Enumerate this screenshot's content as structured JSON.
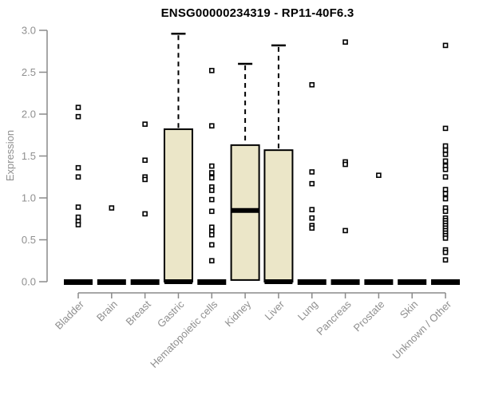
{
  "chart_data": {
    "type": "boxplot",
    "title": "ENSG00000234319 - RP11-40F6.3",
    "ylabel": "Expression",
    "ylim": [
      0.0,
      3.0
    ],
    "ytick_step": 0.5,
    "yticks": [
      0.0,
      0.5,
      1.0,
      1.5,
      2.0,
      2.5,
      3.0
    ],
    "grid": false,
    "legend": false,
    "categories": [
      "Bladder",
      "Brain",
      "Breast",
      "Gastric",
      "Hematopoietic cells",
      "Kidney",
      "Liver",
      "Lung",
      "Pancreas",
      "Prostate",
      "Skin",
      "Unknown / Other"
    ],
    "groups": [
      {
        "name": "Bladder",
        "box": {
          "low": 0,
          "q1": 0,
          "median": 0,
          "q3": 0,
          "high": 0
        },
        "points": [
          2.08,
          1.97,
          1.36,
          1.25,
          0.89,
          0.77,
          0.72,
          0.68
        ]
      },
      {
        "name": "Brain",
        "box": {
          "low": 0,
          "q1": 0,
          "median": 0,
          "q3": 0,
          "high": 0
        },
        "points": [
          0.88
        ]
      },
      {
        "name": "Breast",
        "box": {
          "low": 0,
          "q1": 0,
          "median": 0,
          "q3": 0,
          "high": 0
        },
        "points": [
          1.88,
          1.45,
          1.25,
          1.22,
          0.81
        ]
      },
      {
        "name": "Gastric",
        "box": {
          "low": 0,
          "q1": 0,
          "median": 0,
          "q3": 1.82,
          "high": 2.96
        },
        "points": []
      },
      {
        "name": "Hematopoietic cells",
        "box": {
          "low": 0,
          "q1": 0,
          "median": 0,
          "q3": 0,
          "high": 0
        },
        "points": [
          2.52,
          1.86,
          1.38,
          1.3,
          1.24,
          1.13,
          1.09,
          0.98,
          0.84,
          0.65,
          0.6,
          0.56,
          0.44,
          0.25
        ]
      },
      {
        "name": "Kidney",
        "box": {
          "low": 0.02,
          "q1": 0.02,
          "median": 0.85,
          "q3": 1.63,
          "high": 2.6
        },
        "points": []
      },
      {
        "name": "Liver",
        "box": {
          "low": 0,
          "q1": 0,
          "median": 0,
          "q3": 1.57,
          "high": 2.82
        },
        "points": []
      },
      {
        "name": "Lung",
        "box": {
          "low": 0,
          "q1": 0,
          "median": 0,
          "q3": 0,
          "high": 0
        },
        "points": [
          2.35,
          1.31,
          1.17,
          0.86,
          0.76,
          0.67,
          0.64
        ]
      },
      {
        "name": "Pancreas",
        "box": {
          "low": 0,
          "q1": 0,
          "median": 0,
          "q3": 0,
          "high": 0
        },
        "points": [
          2.86,
          1.43,
          1.4,
          0.61
        ]
      },
      {
        "name": "Prostate",
        "box": {
          "low": 0,
          "q1": 0,
          "median": 0,
          "q3": 0,
          "high": 0
        },
        "points": [
          1.27
        ]
      },
      {
        "name": "Skin",
        "box": {
          "low": 0,
          "q1": 0,
          "median": 0,
          "q3": 0,
          "high": 0
        },
        "points": []
      },
      {
        "name": "Unknown / Other",
        "box": {
          "low": 0,
          "q1": 0,
          "median": 0,
          "q3": 0,
          "high": 0
        },
        "points": [
          2.82,
          1.83,
          1.62,
          1.57,
          1.52,
          1.44,
          1.38,
          1.34,
          1.25,
          1.1,
          1.05,
          0.99,
          0.88,
          0.84,
          0.76,
          0.73,
          0.7,
          0.67,
          0.64,
          0.61,
          0.58,
          0.55,
          0.52,
          0.38,
          0.35,
          0.26
        ]
      }
    ]
  },
  "style": {
    "background": "#ffffff",
    "box_fill": "#ebe6c8",
    "box_stroke": "#000000",
    "median_color": "#000000",
    "whisker_color": "#000000",
    "flat_bar_color": "#000000",
    "point_fill": "#ffffff",
    "point_stroke": "#000000",
    "axis_color": "#8a8a8a",
    "tick_text_color": "#8f8f8f",
    "title_color": "#000000"
  }
}
